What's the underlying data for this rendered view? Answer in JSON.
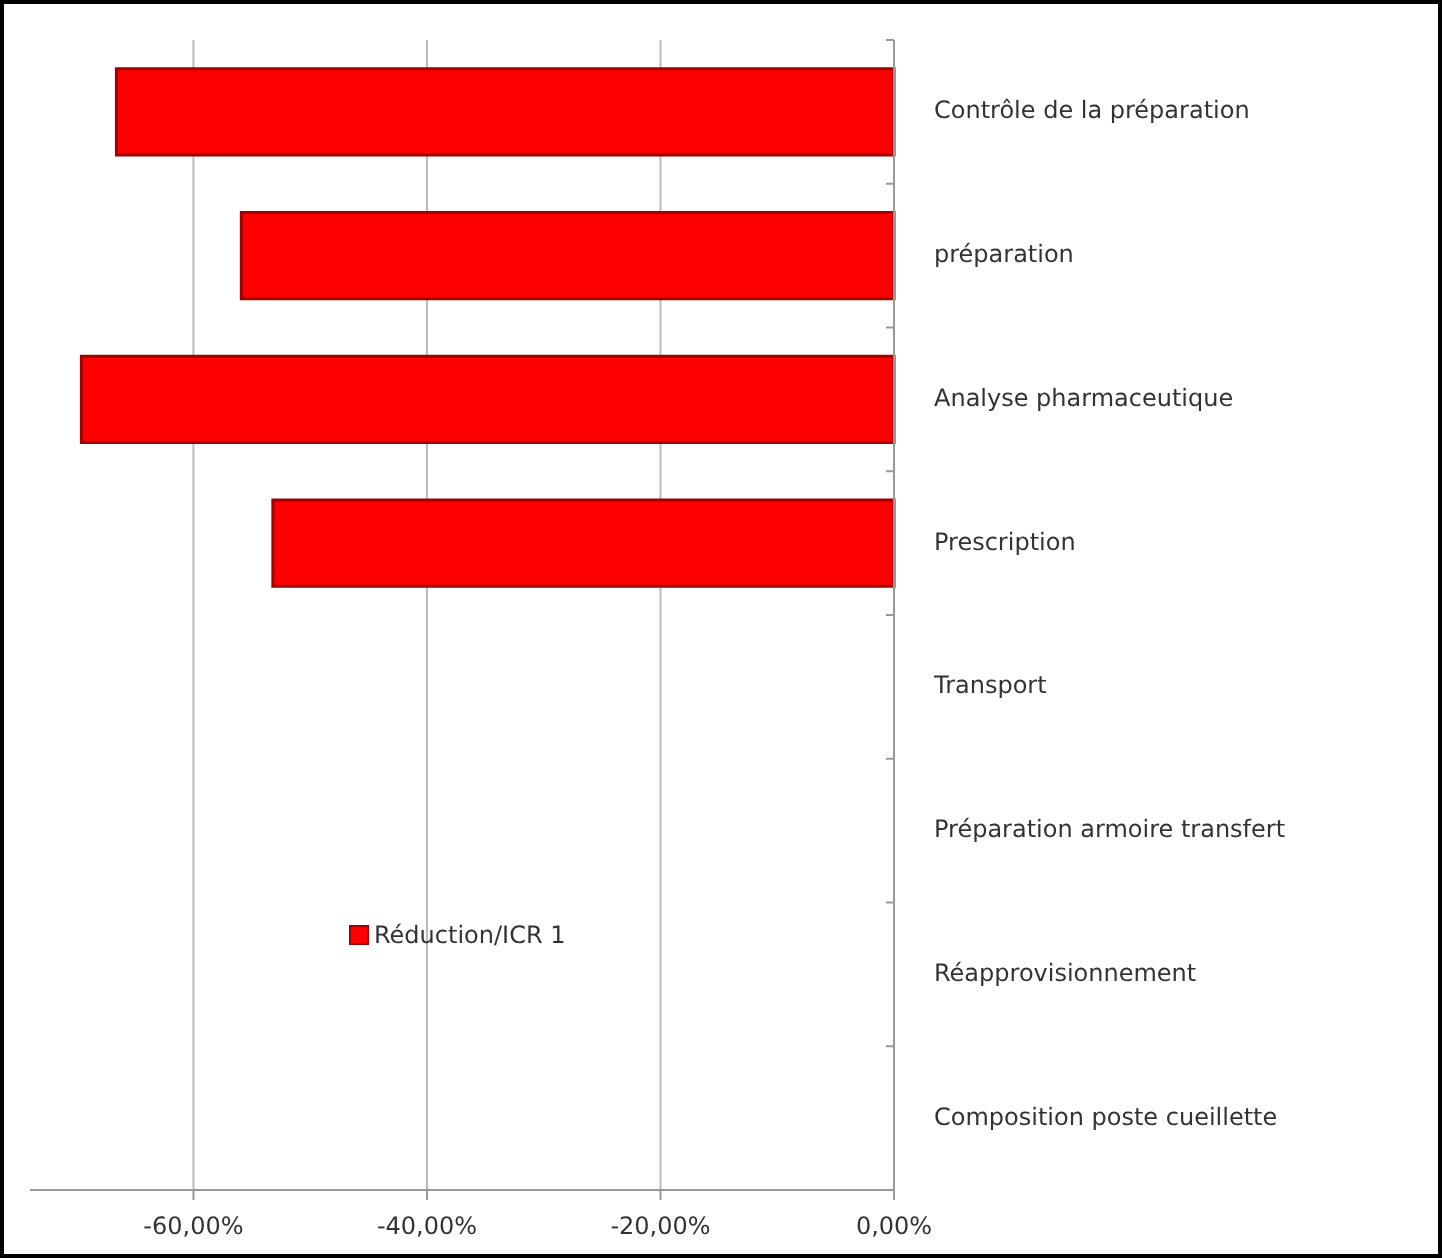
{
  "chart_data": {
    "type": "bar",
    "orientation": "horizontal",
    "categories": [
      "Contrôle de la préparation",
      "préparation",
      "Analyse pharmaceutique",
      "Prescription",
      "Transport",
      "Préparation armoire transfert",
      "Réapprovisionnement",
      "Composition poste cueillette"
    ],
    "series": [
      {
        "name": "Réduction/ICR 1",
        "color": "#ff0000",
        "values": [
          -66.6,
          -55.9,
          -69.6,
          -53.2,
          0,
          0,
          0,
          0
        ]
      }
    ],
    "xlim": [
      -74,
      0
    ],
    "xticks": [
      {
        "value": -60,
        "label": "-60,00%"
      },
      {
        "value": -40,
        "label": "-40,00%"
      },
      {
        "value": -20,
        "label": "-20,00%"
      },
      {
        "value": 0,
        "label": "0,00%"
      }
    ],
    "grid": "x",
    "legend": "left"
  }
}
